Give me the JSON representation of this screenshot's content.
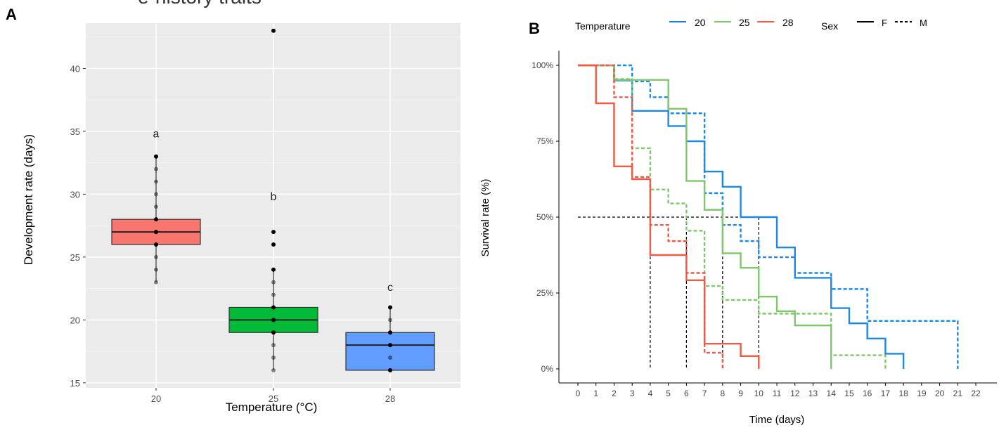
{
  "panels": {
    "a_label": "A",
    "b_label": "B",
    "a_top_fragment": "e-history traits"
  },
  "colors": {
    "t20_box": "#F8766D",
    "t25_box": "#00BA38",
    "t28_box": "#619CFF",
    "t20_line": "#1E88E5",
    "t25_line": "#7CC86B",
    "t28_line": "#EE5A45",
    "panel_bg": "#EBEBEB"
  },
  "chart_data": [
    {
      "type": "box",
      "xlabel": "Temperature (°C)",
      "ylabel": "Development rate (days)",
      "ylim": [
        14.6,
        43.6
      ],
      "yticks": [
        "15",
        "20",
        "25",
        "30",
        "35",
        "40"
      ],
      "grid": true,
      "categories": [
        "20",
        "25",
        "28"
      ],
      "boxes": [
        {
          "category": "20",
          "q1": 26,
          "median": 27,
          "q3": 28,
          "whisker_low": 23,
          "whisker_high": 33,
          "letter": "a",
          "letter_y": 34.8,
          "points": [
            23,
            24,
            25,
            26,
            27,
            28,
            29,
            30,
            31,
            32,
            33
          ]
        },
        {
          "category": "25",
          "q1": 19,
          "median": 20,
          "q3": 21,
          "whisker_low": 16,
          "whisker_high": 24,
          "letter": "b",
          "letter_y": 29.8,
          "points": [
            16,
            17,
            18,
            19,
            20,
            21,
            22,
            23,
            24,
            26,
            27,
            43
          ]
        },
        {
          "category": "28",
          "q1": 16,
          "median": 18,
          "q3": 19,
          "whisker_low": 16,
          "whisker_high": 21,
          "letter": "c",
          "letter_y": 22.6,
          "points": [
            16,
            17,
            18,
            19,
            20,
            21
          ]
        }
      ]
    },
    {
      "type": "line",
      "subtype": "step",
      "xlabel": "Time (days)",
      "ylabel": "Survival rate (%)",
      "xlim": [
        -0.5,
        22.8
      ],
      "ylim": [
        -0.04,
        1.04
      ],
      "xticks": [
        "0",
        "1",
        "2",
        "3",
        "4",
        "5",
        "6",
        "7",
        "8",
        "9",
        "10",
        "11",
        "12",
        "13",
        "14",
        "15",
        "16",
        "17",
        "18",
        "19",
        "20",
        "21",
        "22"
      ],
      "yticks": [
        "0%",
        "25%",
        "50%",
        "75%",
        "100%"
      ],
      "grid": false,
      "legend": {
        "placement": "top",
        "temperature_title": "Temperature",
        "temperature_entries": [
          "20",
          "25",
          "28"
        ],
        "sex_title": "Sex",
        "sex_entries": [
          "F",
          "M"
        ]
      },
      "series": [
        {
          "temperature": "20",
          "sex": "F",
          "steps": [
            [
              0,
              1
            ],
            [
              2,
              0.95
            ],
            [
              3,
              0.85
            ],
            [
              5,
              0.8
            ],
            [
              6,
              0.75
            ],
            [
              7,
              0.65
            ],
            [
              8,
              0.6
            ],
            [
              9,
              0.5
            ],
            [
              11,
              0.4
            ],
            [
              12,
              0.3
            ],
            [
              14,
              0.2
            ],
            [
              15,
              0.15
            ],
            [
              16,
              0.1
            ],
            [
              17,
              0.05
            ],
            [
              18,
              0
            ]
          ]
        },
        {
          "temperature": "20",
          "sex": "M",
          "steps": [
            [
              0,
              1
            ],
            [
              3,
              0.947
            ],
            [
              4,
              0.895
            ],
            [
              5,
              0.842
            ],
            [
              7,
              0.579
            ],
            [
              8,
              0.474
            ],
            [
              9,
              0.421
            ],
            [
              10,
              0.368
            ],
            [
              12,
              0.316
            ],
            [
              14,
              0.263
            ],
            [
              16,
              0.158
            ],
            [
              21,
              0
            ]
          ]
        },
        {
          "temperature": "25",
          "sex": "F",
          "steps": [
            [
              0,
              1
            ],
            [
              2,
              0.952
            ],
            [
              5,
              0.857
            ],
            [
              6,
              0.619
            ],
            [
              7,
              0.524
            ],
            [
              8,
              0.381
            ],
            [
              9,
              0.333
            ],
            [
              10,
              0.238
            ],
            [
              11,
              0.19
            ],
            [
              12,
              0.143
            ],
            [
              14,
              0
            ]
          ]
        },
        {
          "temperature": "25",
          "sex": "M",
          "steps": [
            [
              0,
              1
            ],
            [
              2,
              0.955
            ],
            [
              3,
              0.727
            ],
            [
              4,
              0.591
            ],
            [
              5,
              0.545
            ],
            [
              6,
              0.455
            ],
            [
              7,
              0.273
            ],
            [
              8,
              0.227
            ],
            [
              10,
              0.182
            ],
            [
              14,
              0.045
            ],
            [
              17,
              0
            ]
          ]
        },
        {
          "temperature": "28",
          "sex": "F",
          "steps": [
            [
              0,
              1
            ],
            [
              1,
              0.875
            ],
            [
              2,
              0.667
            ],
            [
              3,
              0.625
            ],
            [
              4,
              0.375
            ],
            [
              6,
              0.292
            ],
            [
              7,
              0.083
            ],
            [
              9,
              0.042
            ],
            [
              10,
              0
            ]
          ]
        },
        {
          "temperature": "28",
          "sex": "M",
          "steps": [
            [
              0,
              1
            ],
            [
              2,
              0.895
            ],
            [
              3,
              0.632
            ],
            [
              4,
              0.474
            ],
            [
              5,
              0.421
            ],
            [
              6,
              0.316
            ],
            [
              7,
              0.053
            ],
            [
              8,
              0
            ]
          ]
        }
      ],
      "median_lines": {
        "y": 0.5,
        "x_end": 10,
        "drops": [
          4,
          6,
          8,
          10
        ]
      }
    }
  ]
}
